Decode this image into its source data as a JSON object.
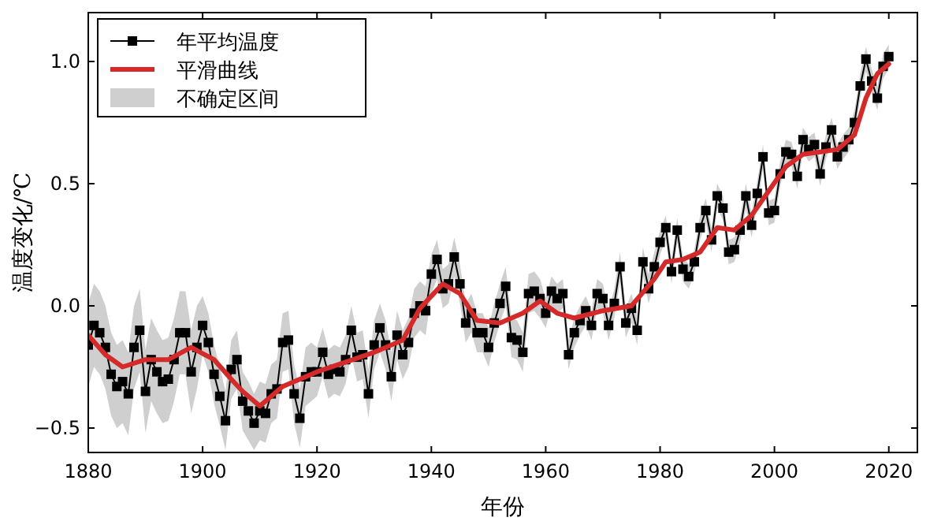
{
  "chart_data": {
    "type": "line",
    "xlabel": "年份",
    "ylabel": "温度变化/℃",
    "xlim": [
      1880,
      2025
    ],
    "ylim": [
      -0.6,
      1.2
    ],
    "xticks": [
      1880,
      1900,
      1920,
      1940,
      1960,
      1980,
      2000,
      2020
    ],
    "yticks": [
      {
        "value": -0.5,
        "label": "−0.5"
      },
      {
        "value": 0,
        "label": "0.0"
      },
      {
        "value": 0.5,
        "label": "0.5"
      },
      {
        "value": 1,
        "label": "1.0"
      }
    ],
    "grid": false,
    "legend": "top left",
    "annotations": [
      "不确定区间"
    ],
    "x": [
      1880,
      1881,
      1882,
      1883,
      1884,
      1885,
      1886,
      1887,
      1888,
      1889,
      1890,
      1891,
      1892,
      1893,
      1894,
      1895,
      1896,
      1897,
      1898,
      1899,
      1900,
      1901,
      1902,
      1903,
      1904,
      1905,
      1906,
      1907,
      1908,
      1909,
      1910,
      1911,
      1912,
      1913,
      1914,
      1915,
      1916,
      1917,
      1918,
      1919,
      1920,
      1921,
      1922,
      1923,
      1924,
      1925,
      1926,
      1927,
      1928,
      1929,
      1930,
      1931,
      1932,
      1933,
      1934,
      1935,
      1936,
      1937,
      1938,
      1939,
      1940,
      1941,
      1942,
      1943,
      1944,
      1945,
      1946,
      1947,
      1948,
      1949,
      1950,
      1951,
      1952,
      1953,
      1954,
      1955,
      1956,
      1957,
      1958,
      1959,
      1960,
      1961,
      1962,
      1963,
      1964,
      1965,
      1966,
      1967,
      1968,
      1969,
      1970,
      1971,
      1972,
      1973,
      1974,
      1975,
      1976,
      1977,
      1978,
      1979,
      1980,
      1981,
      1982,
      1983,
      1984,
      1985,
      1986,
      1987,
      1988,
      1989,
      1990,
      1991,
      1992,
      1993,
      1994,
      1995,
      1996,
      1997,
      1998,
      1999,
      2000,
      2001,
      2002,
      2003,
      2004,
      2005,
      2006,
      2007,
      2008,
      2009,
      2010,
      2011,
      2012,
      2013,
      2014,
      2015,
      2016,
      2017,
      2018,
      2019,
      2020
    ],
    "series": [
      {
        "name": "年平均温度",
        "color": "#000000",
        "marker": "square",
        "lower": [
          -0.33,
          -0.25,
          -0.28,
          -0.34,
          -0.45,
          -0.5,
          -0.48,
          -0.53,
          -0.34,
          -0.27,
          -0.52,
          -0.39,
          -0.44,
          -0.48,
          -0.47,
          -0.39,
          -0.28,
          -0.28,
          -0.44,
          -0.34,
          -0.2,
          -0.27,
          -0.4,
          -0.49,
          -0.59,
          -0.38,
          -0.34,
          -0.51,
          -0.55,
          -0.59,
          -0.55,
          -0.56,
          -0.48,
          -0.46,
          -0.27,
          -0.26,
          -0.48,
          -0.58,
          -0.41,
          -0.39,
          -0.37,
          -0.29,
          -0.38,
          -0.36,
          -0.37,
          -0.32,
          -0.2,
          -0.31,
          -0.3,
          -0.46,
          -0.26,
          -0.19,
          -0.26,
          -0.39,
          -0.22,
          -0.3,
          -0.25,
          -0.13,
          -0.1,
          -0.12,
          0.05,
          0.11,
          -0.01,
          0.01,
          0.12,
          0.01,
          -0.15,
          -0.11,
          -0.19,
          -0.19,
          -0.25,
          -0.15,
          -0.07,
          0.0,
          -0.21,
          -0.22,
          -0.27,
          -0.03,
          -0.02,
          -0.05,
          -0.09,
          0.0,
          -0.03,
          -0.01,
          -0.26,
          -0.17,
          -0.12,
          -0.08,
          -0.14,
          -0.01,
          -0.03,
          -0.14,
          -0.05,
          0.1,
          -0.13,
          -0.07,
          -0.16,
          0.12,
          0.01,
          0.1,
          0.21,
          0.27,
          0.09,
          0.26,
          0.1,
          0.07,
          0.13,
          0.27,
          0.34,
          0.22,
          0.4,
          0.35,
          0.17,
          0.18,
          0.26,
          0.4,
          0.28,
          0.41,
          0.56,
          0.33,
          0.34,
          0.49,
          0.58,
          0.57,
          0.48,
          0.63,
          0.59,
          0.61,
          0.49,
          0.6,
          0.67,
          0.56,
          0.6,
          0.63,
          0.7,
          0.85,
          0.96,
          0.87,
          0.8,
          0.93,
          0.97
        ],
        "upper": [
          0.01,
          0.09,
          0.06,
          0.0,
          -0.11,
          -0.16,
          -0.14,
          -0.19,
          0.0,
          0.07,
          -0.18,
          -0.05,
          -0.1,
          -0.14,
          -0.13,
          -0.05,
          0.06,
          0.06,
          -0.1,
          0.0,
          0.04,
          -0.03,
          -0.16,
          -0.25,
          -0.35,
          -0.14,
          -0.1,
          -0.27,
          -0.31,
          -0.36,
          -0.31,
          -0.32,
          -0.24,
          -0.22,
          -0.03,
          -0.02,
          -0.24,
          -0.34,
          -0.17,
          -0.15,
          -0.17,
          -0.09,
          -0.18,
          -0.16,
          -0.17,
          -0.12,
          0.0,
          -0.11,
          -0.1,
          -0.26,
          -0.06,
          0.01,
          -0.06,
          -0.19,
          -0.02,
          -0.1,
          -0.05,
          0.07,
          0.1,
          0.08,
          0.21,
          0.27,
          0.15,
          0.17,
          0.28,
          0.17,
          0.01,
          0.05,
          -0.03,
          -0.03,
          -0.09,
          0.01,
          0.09,
          0.16,
          -0.05,
          -0.06,
          -0.11,
          0.13,
          0.14,
          0.11,
          0.03,
          0.12,
          0.09,
          0.11,
          -0.14,
          -0.05,
          0.0,
          0.04,
          -0.02,
          0.11,
          0.09,
          -0.02,
          0.07,
          0.22,
          -0.01,
          0.05,
          -0.04,
          0.24,
          0.13,
          0.22,
          0.31,
          0.37,
          0.19,
          0.36,
          0.2,
          0.17,
          0.23,
          0.37,
          0.44,
          0.32,
          0.5,
          0.45,
          0.27,
          0.28,
          0.36,
          0.5,
          0.38,
          0.51,
          0.66,
          0.43,
          0.44,
          0.59,
          0.68,
          0.67,
          0.58,
          0.73,
          0.69,
          0.71,
          0.59,
          0.7,
          0.77,
          0.66,
          0.7,
          0.73,
          0.8,
          0.95,
          1.06,
          0.97,
          0.9,
          1.03,
          1.07
        ],
        "values": [
          -0.16,
          -0.08,
          -0.11,
          -0.17,
          -0.28,
          -0.33,
          -0.31,
          -0.36,
          -0.17,
          -0.1,
          -0.35,
          -0.22,
          -0.27,
          -0.31,
          -0.3,
          -0.22,
          -0.11,
          -0.11,
          -0.27,
          -0.17,
          -0.08,
          -0.15,
          -0.28,
          -0.37,
          -0.47,
          -0.26,
          -0.22,
          -0.39,
          -0.43,
          -0.48,
          -0.43,
          -0.44,
          -0.36,
          -0.34,
          -0.15,
          -0.14,
          -0.36,
          -0.46,
          -0.29,
          -0.27,
          -0.27,
          -0.19,
          -0.28,
          -0.26,
          -0.27,
          -0.22,
          -0.1,
          -0.21,
          -0.2,
          -0.36,
          -0.16,
          -0.09,
          -0.16,
          -0.29,
          -0.12,
          -0.2,
          -0.15,
          -0.03,
          0.0,
          -0.02,
          0.13,
          0.19,
          0.07,
          0.09,
          0.2,
          0.09,
          -0.07,
          -0.03,
          -0.11,
          -0.11,
          -0.17,
          -0.07,
          0.01,
          0.08,
          -0.13,
          -0.14,
          -0.19,
          0.05,
          0.06,
          0.03,
          -0.03,
          0.06,
          0.03,
          0.05,
          -0.2,
          -0.11,
          -0.06,
          -0.02,
          -0.08,
          0.05,
          0.03,
          -0.08,
          0.01,
          0.16,
          -0.07,
          -0.01,
          -0.1,
          0.18,
          0.07,
          0.16,
          0.26,
          0.32,
          0.14,
          0.31,
          0.15,
          0.12,
          0.18,
          0.32,
          0.39,
          0.27,
          0.45,
          0.4,
          0.22,
          0.23,
          0.31,
          0.45,
          0.33,
          0.46,
          0.61,
          0.38,
          0.39,
          0.54,
          0.63,
          0.62,
          0.53,
          0.68,
          0.64,
          0.66,
          0.54,
          0.65,
          0.72,
          0.61,
          0.65,
          0.68,
          0.75,
          0.9,
          1.01,
          0.92,
          0.85,
          0.98,
          1.02
        ]
      },
      {
        "name": "平滑曲线",
        "color": "#d42a2a",
        "x": [
          1880,
          1883,
          1886,
          1890,
          1894,
          1898,
          1902,
          1905,
          1907,
          1910,
          1914,
          1918,
          1920,
          1925,
          1930,
          1935,
          1938,
          1942,
          1945,
          1948,
          1952,
          1956,
          1959,
          1962,
          1965,
          1970,
          1975,
          1979,
          1981,
          1984,
          1987,
          1990,
          1993,
          1996,
          1999,
          2002,
          2005,
          2008,
          2011,
          2014,
          2016,
          2018,
          2020
        ],
        "values": [
          -0.12,
          -0.2,
          -0.25,
          -0.22,
          -0.22,
          -0.17,
          -0.22,
          -0.3,
          -0.35,
          -0.41,
          -0.33,
          -0.29,
          -0.27,
          -0.23,
          -0.19,
          -0.14,
          -0.01,
          0.09,
          0.05,
          -0.06,
          -0.07,
          -0.03,
          0.02,
          -0.03,
          -0.05,
          -0.02,
          0.0,
          0.11,
          0.18,
          0.19,
          0.22,
          0.32,
          0.31,
          0.37,
          0.47,
          0.57,
          0.62,
          0.63,
          0.64,
          0.7,
          0.85,
          0.95,
          0.99
        ]
      }
    ]
  }
}
